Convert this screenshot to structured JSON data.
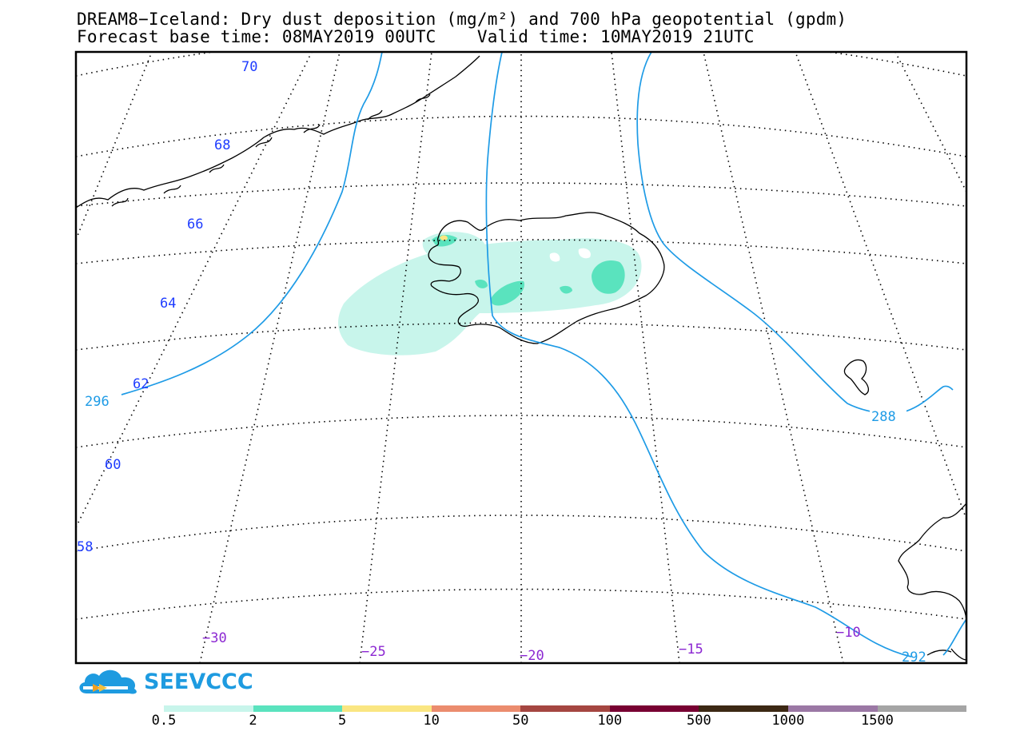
{
  "header": {
    "line1": "DREAM8−Iceland: Dry dust deposition (mg/m²) and 700 hPa geopotential (gpdm)",
    "line2": "Forecast base time: 08MAY2019 00UTC    Valid time: 10MAY2019 21UTC"
  },
  "map": {
    "region": "Iceland",
    "variable": "Dry dust deposition",
    "units": "mg/m²",
    "overlay": "700 hPa geopotential",
    "overlay_units": "gpdm",
    "lat_labels": [
      "70",
      "68",
      "66",
      "64",
      "62",
      "60",
      "58"
    ],
    "lon_labels": [
      "−30",
      "−25",
      "−20",
      "−15",
      "−10"
    ],
    "contour_labels": [
      "296",
      "288",
      "292"
    ],
    "colors": {
      "coast": "#000000",
      "contour": "#1e9be6",
      "lat_label": "#1e3cff",
      "lon_label": "#8c28d2",
      "contour_label": "#1e9be6"
    }
  },
  "logo": {
    "text": "SEEVCCC",
    "icon": "cloud-arrow-icon",
    "color": "#1e9be0"
  },
  "legend": {
    "bins": [
      {
        "color": "#c8f5eb"
      },
      {
        "color": "#5ae3be"
      },
      {
        "color": "#fae682"
      },
      {
        "color": "#eb8c6e"
      },
      {
        "color": "#a54641"
      },
      {
        "color": "#780032"
      },
      {
        "color": "#3c2814"
      },
      {
        "color": "#9b78a5"
      },
      {
        "color": "#a5a5a5"
      }
    ],
    "labels": [
      "0.5",
      "2",
      "5",
      "10",
      "50",
      "100",
      "500",
      "1000",
      "1500"
    ]
  }
}
